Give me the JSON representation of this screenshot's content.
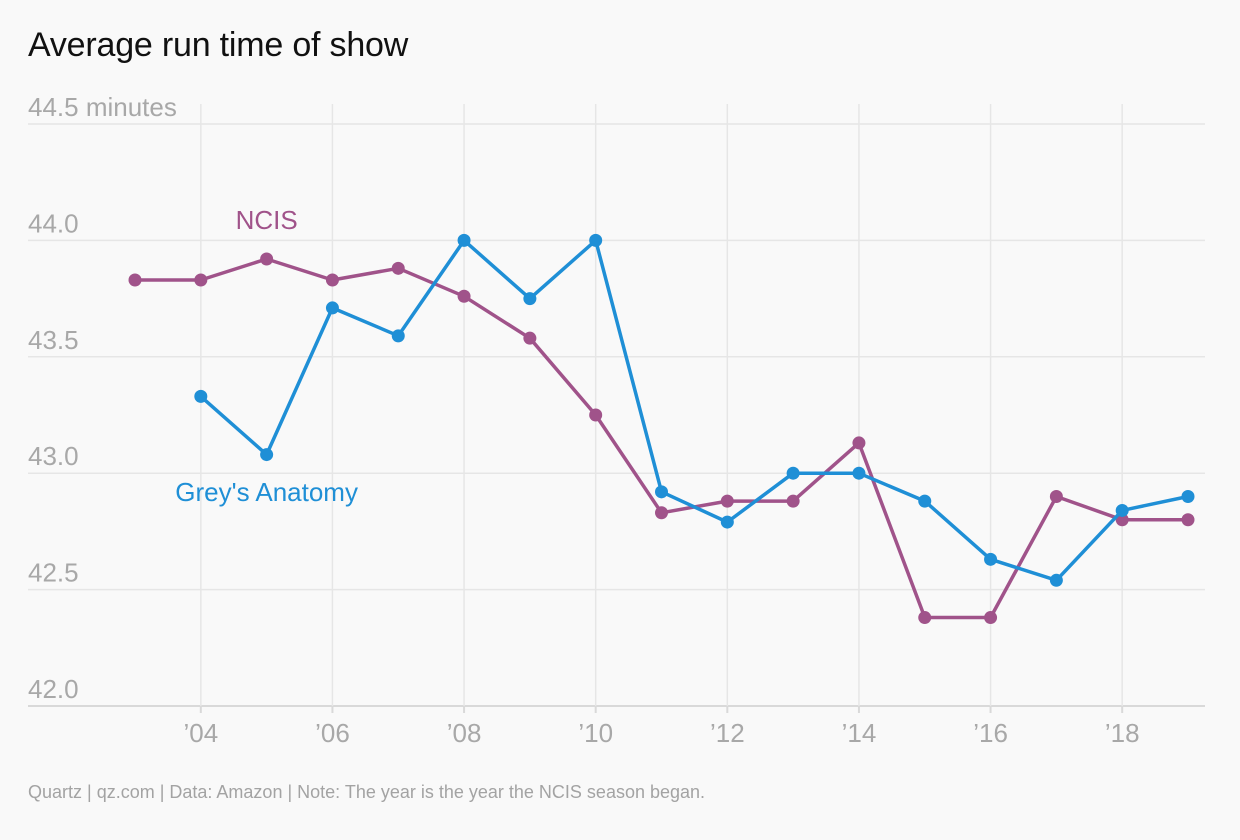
{
  "title": "Average run time of show",
  "footer": "Quartz | qz.com | Data: Amazon | Note: The year is the year the NCIS season began.",
  "colors": {
    "ncis": "#a0538a",
    "greys": "#1f8fd6",
    "grid": "#e6e6e6",
    "tick_label": "#a8a8a8",
    "baseline": "#d9d9d9"
  },
  "chart_data": {
    "type": "line",
    "title": "Average run time of show",
    "xlabel": "",
    "ylabel": "",
    "xlim": [
      2003,
      2019
    ],
    "ylim": [
      42.0,
      44.5
    ],
    "grid": true,
    "y_ticks": [
      {
        "value": 44.5,
        "label": "44.5 minutes"
      },
      {
        "value": 44.0,
        "label": "44.0"
      },
      {
        "value": 43.5,
        "label": "43.5"
      },
      {
        "value": 43.0,
        "label": "43.0"
      },
      {
        "value": 42.5,
        "label": "42.5"
      },
      {
        "value": 42.0,
        "label": "42.0"
      }
    ],
    "x_ticks": [
      {
        "value": 2004,
        "label": "’04"
      },
      {
        "value": 2006,
        "label": "’06"
      },
      {
        "value": 2008,
        "label": "’08"
      },
      {
        "value": 2010,
        "label": "’10"
      },
      {
        "value": 2012,
        "label": "’12"
      },
      {
        "value": 2014,
        "label": "’14"
      },
      {
        "value": 2016,
        "label": "’16"
      },
      {
        "value": 2018,
        "label": "’18"
      }
    ],
    "series": [
      {
        "name": "NCIS",
        "color": "#a0538a",
        "points": [
          {
            "x": 2003,
            "y": 43.83
          },
          {
            "x": 2004,
            "y": 43.83
          },
          {
            "x": 2005,
            "y": 43.92
          },
          {
            "x": 2006,
            "y": 43.83
          },
          {
            "x": 2007,
            "y": 43.88
          },
          {
            "x": 2008,
            "y": 43.76
          },
          {
            "x": 2009,
            "y": 43.58
          },
          {
            "x": 2010,
            "y": 43.25
          },
          {
            "x": 2011,
            "y": 42.83
          },
          {
            "x": 2012,
            "y": 42.88
          },
          {
            "x": 2013,
            "y": 42.88
          },
          {
            "x": 2014,
            "y": 43.13
          },
          {
            "x": 2015,
            "y": 42.38
          },
          {
            "x": 2016,
            "y": 42.38
          },
          {
            "x": 2017,
            "y": 42.9
          },
          {
            "x": 2018,
            "y": 42.8
          },
          {
            "x": 2019,
            "y": 42.8
          }
        ]
      },
      {
        "name": "Grey's Anatomy",
        "color": "#1f8fd6",
        "points": [
          {
            "x": 2004,
            "y": 43.33
          },
          {
            "x": 2005,
            "y": 43.08
          },
          {
            "x": 2006,
            "y": 43.71
          },
          {
            "x": 2007,
            "y": 43.59
          },
          {
            "x": 2008,
            "y": 44.0
          },
          {
            "x": 2009,
            "y": 43.75
          },
          {
            "x": 2010,
            "y": 44.0
          },
          {
            "x": 2011,
            "y": 42.92
          },
          {
            "x": 2012,
            "y": 42.79
          },
          {
            "x": 2013,
            "y": 43.0
          },
          {
            "x": 2014,
            "y": 43.0
          },
          {
            "x": 2015,
            "y": 42.88
          },
          {
            "x": 2016,
            "y": 42.63
          },
          {
            "x": 2017,
            "y": 42.54
          },
          {
            "x": 2018,
            "y": 42.84
          },
          {
            "x": 2019,
            "y": 42.9
          }
        ]
      }
    ],
    "annotations": [
      {
        "text": "NCIS",
        "series": "NCIS",
        "x": 2005.0,
        "y": 44.05
      },
      {
        "text": "Grey's Anatomy",
        "series": "Grey's Anatomy",
        "x": 2005.0,
        "y": 42.88
      }
    ]
  }
}
